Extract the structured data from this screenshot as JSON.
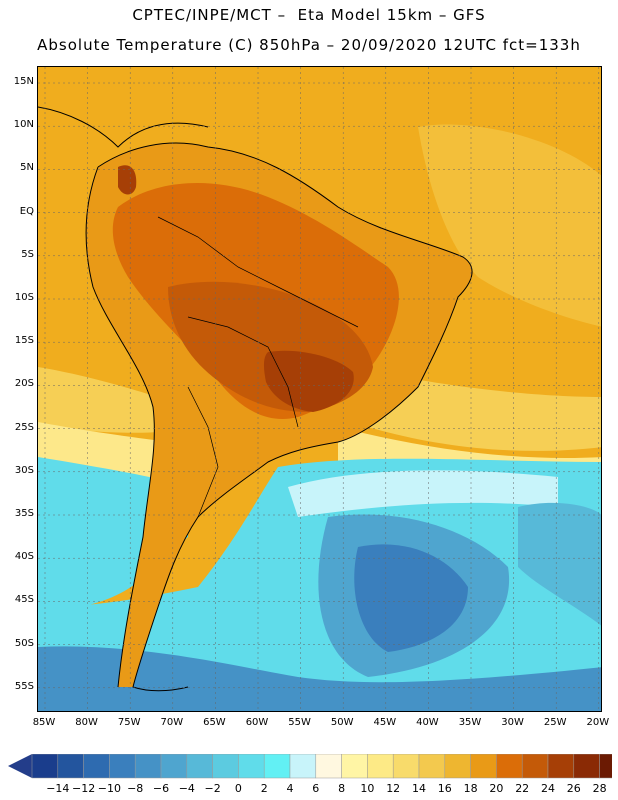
{
  "header": {
    "line1": "CPTEC/INPE/MCT –  Eta Model 15km – GFS",
    "line2": "Absolute Temperature (C) 850hPa – 20/09/2020 12UTC fct=133h"
  },
  "map": {
    "lat_labels": [
      "15N",
      "10N",
      "5N",
      "EQ",
      "5S",
      "10S",
      "15S",
      "20S",
      "25S",
      "30S",
      "35S",
      "40S",
      "45S",
      "50S",
      "55S"
    ],
    "lon_labels": [
      "85W",
      "80W",
      "75W",
      "70W",
      "65W",
      "60W",
      "55W",
      "50W",
      "45W",
      "40W",
      "35W",
      "30W",
      "25W",
      "20W"
    ]
  },
  "colorbar": {
    "labels": [
      "-14",
      "-12",
      "-10",
      "-8",
      "-6",
      "-4",
      "-2",
      "0",
      "2",
      "4",
      "6",
      "8",
      "10",
      "12",
      "14",
      "16",
      "18",
      "20",
      "22",
      "24",
      "26",
      "28"
    ],
    "colors": [
      "#1a3d8c",
      "#23559e",
      "#2e6bb0",
      "#3a7fbd",
      "#4592c6",
      "#4fa5cf",
      "#57b9d8",
      "#5ccbe0",
      "#60dcea",
      "#62f0f4",
      "#c8f4fa",
      "#fff8e0",
      "#fff5a5",
      "#fdea86",
      "#f8db6b",
      "#f3c94e",
      "#eeb630",
      "#e99a17",
      "#db6d08",
      "#c45a08",
      "#a63f06",
      "#8a2a05",
      "#6b1a03"
    ],
    "left_arrow": "#233d8a",
    "right_arrow": "#7a1030"
  }
}
